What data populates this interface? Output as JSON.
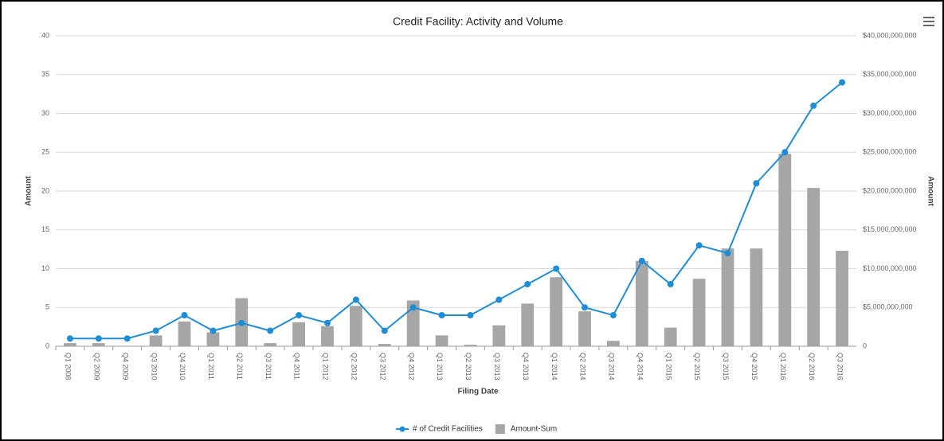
{
  "chart_data": {
    "type": "bar_line",
    "title": "Credit Facility: Activity and Volume",
    "xlabel": "Filing Date",
    "ylabel": "Amount",
    "y2label": "Amount",
    "categories": [
      "Q1 2008",
      "Q2 2009",
      "Q4 2009",
      "Q3 2010",
      "Q4 2010",
      "Q1 2011",
      "Q2 2011",
      "Q3 2011",
      "Q4 2011",
      "Q1 2012",
      "Q2 2012",
      "Q3 2012",
      "Q4 2012",
      "Q1 2013",
      "Q2 2013",
      "Q3 2013",
      "Q4 2013",
      "Q1 2014",
      "Q2 2014",
      "Q3 2014",
      "Q4 2014",
      "Q1 2015",
      "Q2 2015",
      "Q3 2015",
      "Q4 2015",
      "Q1 2016",
      "Q2 2016",
      "Q3 2016"
    ],
    "series": [
      {
        "name": "# of Credit Facilities",
        "color": "#1f8dd6",
        "type": "line",
        "values": [
          1,
          1,
          1,
          2,
          4,
          2,
          3,
          2,
          4,
          3,
          6,
          2,
          5,
          4,
          4,
          6,
          8,
          10,
          5,
          4,
          11,
          8,
          13,
          12,
          21,
          25,
          31,
          34
        ]
      },
      {
        "name": "Amount-Sum",
        "color": "#a6a6a6",
        "type": "bar",
        "axis": "y2",
        "values": [
          400000000,
          400000000,
          0,
          1400000000,
          3200000000,
          1800000000,
          6200000000,
          400000000,
          3100000000,
          2600000000,
          5200000000,
          300000000,
          5900000000,
          1400000000,
          200000000,
          2700000000,
          5500000000,
          8900000000,
          4500000000,
          700000000,
          11000000000,
          2400000000,
          8700000000,
          12600000000,
          12600000000,
          24800000000,
          20400000000,
          12300000000
        ]
      }
    ],
    "ylim": [
      0,
      40
    ],
    "yticks": [
      0,
      5,
      10,
      15,
      20,
      25,
      30,
      35,
      40
    ],
    "y2lim": [
      0,
      40000000000
    ],
    "y2ticks": [
      0,
      {
        "value": 5000000000,
        "label": "$5,000,000,000"
      },
      {
        "value": 10000000000,
        "label": "$10,000,000,000"
      },
      {
        "value": 15000000000,
        "label": "$15,000,000,000"
      },
      {
        "value": 20000000000,
        "label": "$20,000,000,000"
      },
      {
        "value": 25000000000,
        "label": "$25,000,000,000"
      },
      {
        "value": 30000000000,
        "label": "$30,000,000,000"
      },
      {
        "value": 35000000000,
        "label": "$35,000,000,000"
      },
      {
        "value": 40000000000,
        "label": "$40,000,000,000"
      }
    ],
    "grid": true,
    "legend": "bottom"
  }
}
